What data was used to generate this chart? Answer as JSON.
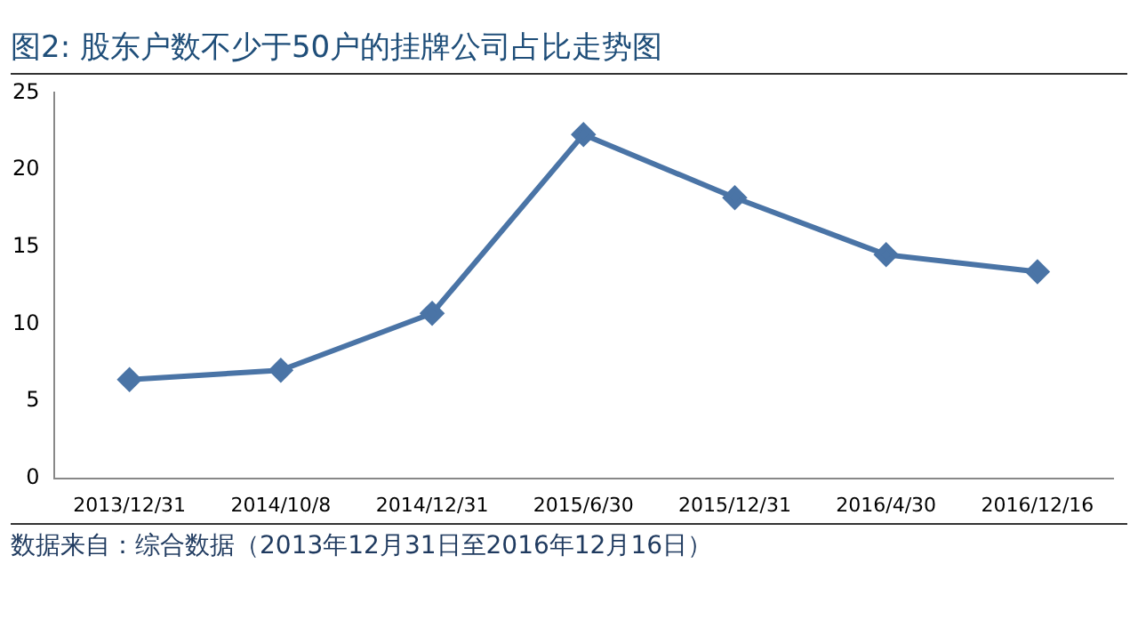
{
  "chart_data": {
    "type": "line",
    "title": "图2: 股东户数不少于50户的挂牌公司占比走势图",
    "categories": [
      "2013/12/31",
      "2014/10/8",
      "2014/12/31",
      "2015/6/30",
      "2015/12/31",
      "2016/4/30",
      "2016/12/16"
    ],
    "series": [
      {
        "color": "#4a74a6",
        "values": [
          6.4,
          7.0,
          10.7,
          22.3,
          18.2,
          14.5,
          13.4
        ]
      }
    ],
    "ylim": [
      0,
      25
    ],
    "yticks": [
      0,
      5,
      10,
      15,
      20,
      25
    ],
    "grid": false,
    "legend": false,
    "marker": "diamond",
    "line_style": "solid",
    "annotations": [
      "数据来自：综合数据（2013年12月31日至2016年12月16日）"
    ]
  }
}
